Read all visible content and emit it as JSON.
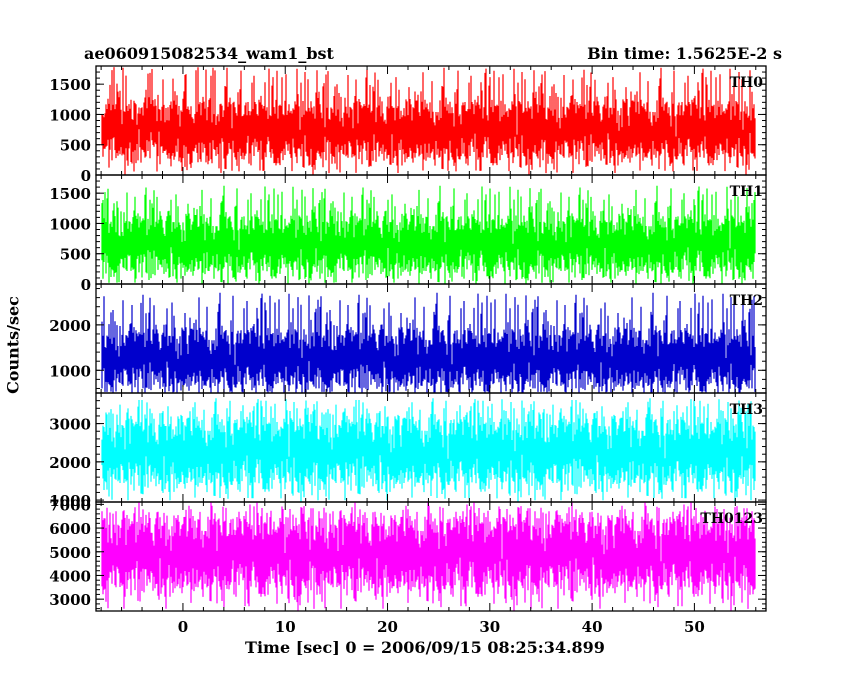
{
  "header": {
    "title_left": "ae060915082534_wam1_bst",
    "title_right": "Bin time: 1.5625E-2 s"
  },
  "chart_data": {
    "type": "line",
    "xlabel": "Time [sec] 0 = 2006/09/15 08:25:34.899",
    "ylabel": "Counts/sec",
    "xlim": [
      -8.5,
      57
    ],
    "x_ticks": [
      0,
      10,
      20,
      30,
      40,
      50
    ],
    "x_range_data": [
      -8,
      56
    ],
    "bin_time": 0.015625,
    "panels": [
      {
        "name": "TH0",
        "color": "#ff0000",
        "ylim": [
          0,
          1800
        ],
        "yticks": [
          0,
          500,
          1000,
          1500
        ],
        "mean": 730,
        "low": 250,
        "high": 1300,
        "spike_max": 1800
      },
      {
        "name": "TH1",
        "color": "#00ff00",
        "ylim": [
          0,
          1800
        ],
        "yticks": [
          0,
          500,
          1000,
          1500
        ],
        "mean": 650,
        "low": 170,
        "high": 1200,
        "spike_max": 1650
      },
      {
        "name": "TH2",
        "color": "#0000cc",
        "ylim": [
          500,
          2900
        ],
        "yticks": [
          1000,
          2000
        ],
        "mean": 1250,
        "low": 700,
        "high": 2100,
        "spike_max": 2750
      },
      {
        "name": "TH3",
        "color": "#00ffff",
        "ylim": [
          950,
          3800
        ],
        "yticks": [
          1000,
          2000,
          3000
        ],
        "mean": 2250,
        "low": 1300,
        "high": 3200,
        "spike_max": 3700
      },
      {
        "name": "TH0123",
        "color": "#ff00ff",
        "ylim": [
          2500,
          7100
        ],
        "yticks": [
          3000,
          4000,
          5000,
          6000,
          7000
        ],
        "mean": 4900,
        "low": 3200,
        "high": 6500,
        "spike_max": 7000
      }
    ]
  }
}
